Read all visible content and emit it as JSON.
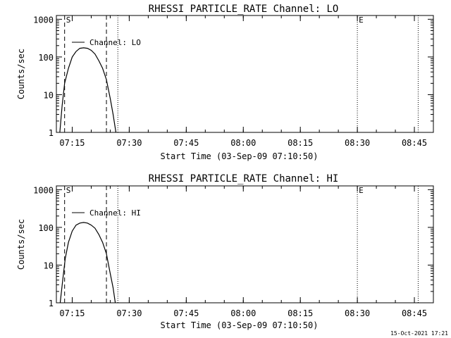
{
  "chart_data": [
    {
      "type": "line",
      "title": "RHESSI PARTICLE_RATE Channel: LO",
      "xlabel": "Start Time (03-Sep-09 07:10:50)",
      "ylabel": "Counts/sec",
      "y_scale": "log",
      "ylim": [
        1,
        1000
      ],
      "xlim": [
        "07:10:50",
        "08:50:00"
      ],
      "x_ticks": [
        "07:15",
        "07:30",
        "07:45",
        "08:00",
        "08:15",
        "08:30",
        "08:45"
      ],
      "y_ticks": [
        "1",
        "10",
        "100",
        "1000"
      ],
      "legend": {
        "label": "Channel: LO",
        "placement": "top-left"
      },
      "markers": [
        {
          "label": "S",
          "time": "07:13"
        },
        {
          "label": "E",
          "time": "08:30"
        }
      ],
      "dashed_lines": [
        "07:13",
        "07:24"
      ],
      "dotted_lines": [
        "07:27",
        "08:30",
        "08:46"
      ],
      "series": [
        {
          "name": "Channel: LO",
          "x": [
            "07:11:45",
            "07:12:20",
            "07:13:00",
            "07:14:00",
            "07:15:00",
            "07:16:00",
            "07:17:00",
            "07:18:00",
            "07:19:00",
            "07:20:00",
            "07:21:00",
            "07:22:00",
            "07:23:00",
            "07:24:00",
            "07:25:00",
            "07:25:45",
            "07:26:30"
          ],
          "values": [
            1,
            5,
            20,
            50,
            100,
            140,
            170,
            175,
            170,
            150,
            120,
            80,
            50,
            25,
            8,
            3,
            1
          ]
        }
      ]
    },
    {
      "type": "line",
      "title": "RHESSI PARTICLE_RATE Channel: HI",
      "xlabel": "Start Time (03-Sep-09 07:10:50)",
      "ylabel": "Counts/sec",
      "y_scale": "log",
      "ylim": [
        1,
        1000
      ],
      "xlim": [
        "07:10:50",
        "08:50:00"
      ],
      "x_ticks": [
        "07:15",
        "07:30",
        "07:45",
        "08:00",
        "08:15",
        "08:30",
        "08:45"
      ],
      "y_ticks": [
        "1",
        "10",
        "100",
        "1000"
      ],
      "legend": {
        "label": "Channel: HI",
        "placement": "top-left"
      },
      "markers": [
        {
          "label": "S",
          "time": "07:13"
        },
        {
          "label": "E",
          "time": "08:30"
        }
      ],
      "dashed_lines": [
        "07:13",
        "07:24"
      ],
      "dotted_lines": [
        "07:27",
        "08:30",
        "08:46"
      ],
      "series": [
        {
          "name": "Channel: HI",
          "x": [
            "07:11:50",
            "07:12:30",
            "07:13:10",
            "07:14:00",
            "07:15:00",
            "07:16:00",
            "07:17:00",
            "07:18:00",
            "07:19:00",
            "07:20:00",
            "07:21:00",
            "07:22:00",
            "07:23:00",
            "07:24:00",
            "07:25:00",
            "07:25:45",
            "07:26:20"
          ],
          "values": [
            1,
            4,
            15,
            40,
            80,
            115,
            130,
            135,
            130,
            115,
            95,
            65,
            40,
            20,
            6,
            2.5,
            1
          ]
        }
      ]
    }
  ],
  "footer": {
    "timestamp": "15-Oct-2021 17:21"
  }
}
